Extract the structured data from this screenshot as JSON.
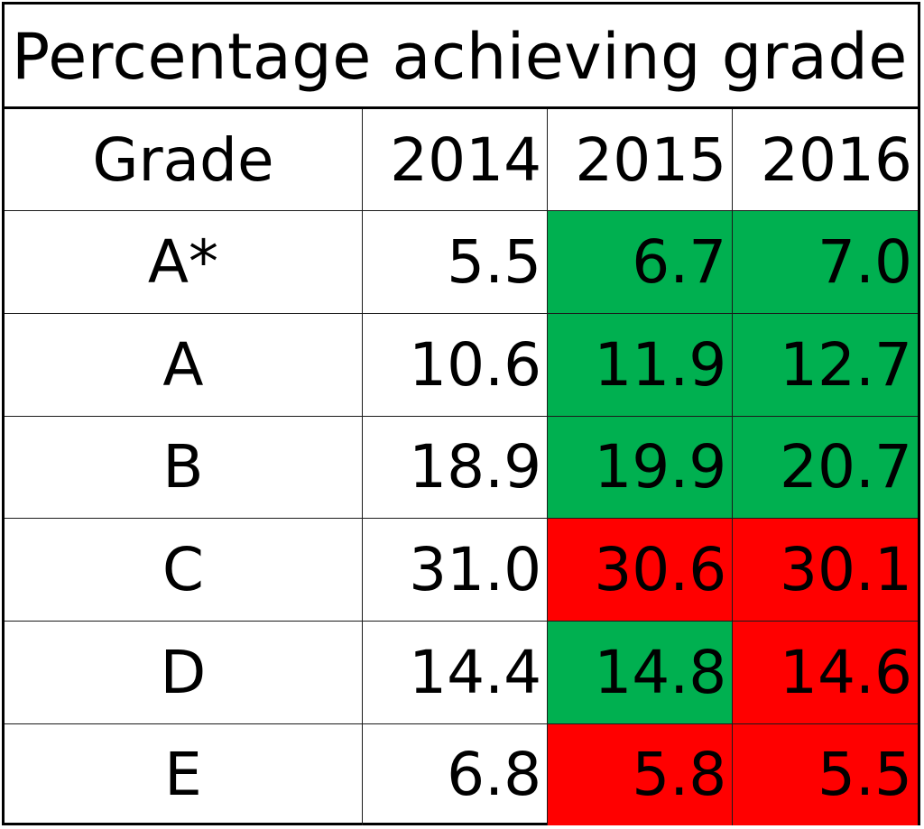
{
  "chart_data": {
    "type": "table",
    "title": "Percentage achieving grade",
    "columns": [
      "Grade",
      "2014",
      "2015",
      "2016"
    ],
    "rows": [
      {
        "grade": "A*",
        "values": [
          "5.5",
          "6.7",
          "7.0"
        ],
        "trend": [
          "",
          "up",
          "up"
        ]
      },
      {
        "grade": "A",
        "values": [
          "10.6",
          "11.9",
          "12.7"
        ],
        "trend": [
          "",
          "up",
          "up"
        ]
      },
      {
        "grade": "B",
        "values": [
          "18.9",
          "19.9",
          "20.7"
        ],
        "trend": [
          "",
          "up",
          "up"
        ]
      },
      {
        "grade": "C",
        "values": [
          "31.0",
          "30.6",
          "30.1"
        ],
        "trend": [
          "",
          "down",
          "down"
        ]
      },
      {
        "grade": "D",
        "values": [
          "14.4",
          "14.8",
          "14.6"
        ],
        "trend": [
          "",
          "up",
          "down"
        ]
      },
      {
        "grade": "E",
        "values": [
          "6.8",
          "5.8",
          "5.5"
        ],
        "trend": [
          "",
          "down",
          "down"
        ]
      }
    ],
    "colors": {
      "increase": "#00b050",
      "decrease": "#ff0000"
    }
  }
}
